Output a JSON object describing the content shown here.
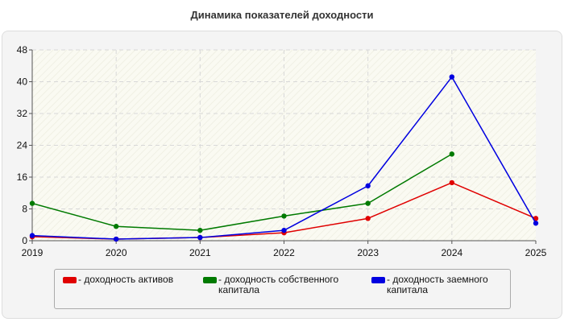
{
  "chart_data": {
    "type": "line",
    "title": "Динамика показателей доходности",
    "xlabel": "",
    "ylabel": "",
    "categories": [
      "2019",
      "2020",
      "2021",
      "2022",
      "2023",
      "2024",
      "2025"
    ],
    "ylim": [
      0,
      48
    ],
    "yticks": [
      0,
      8,
      16,
      24,
      32,
      40,
      48
    ],
    "grid": true,
    "legend_position": "bottom",
    "series": [
      {
        "name": "- доходность активов",
        "color": "#e00000",
        "values": [
          1.0,
          0.4,
          0.8,
          2.0,
          5.6,
          14.6,
          5.6
        ]
      },
      {
        "name": "- доходность собственного капитала",
        "color": "#007a00",
        "values": [
          9.4,
          3.6,
          2.6,
          6.2,
          9.4,
          21.8,
          null
        ]
      },
      {
        "name": "- доходность заемного капитала",
        "color": "#0000e0",
        "values": [
          1.3,
          0.4,
          0.8,
          2.6,
          13.8,
          41.2,
          4.4
        ]
      }
    ]
  }
}
